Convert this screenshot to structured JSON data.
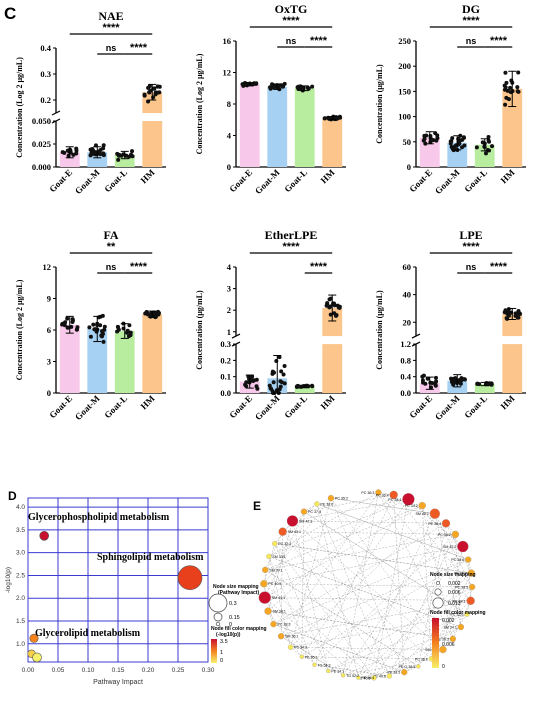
{
  "panel_letters": {
    "c": "C",
    "d": "D",
    "e": "E"
  },
  "colors": {
    "Goat-E": "#f7c8ea",
    "Goat-M": "#a6d1f2",
    "Goat-L": "#b8eda0",
    "HM": "#fbc58c",
    "dot": "#111111",
    "grid": "#3b3bd0",
    "node_hi": "#c8102e",
    "node_mid": "#f5821f",
    "node_lo": "#f6e85a"
  },
  "chart_data": [
    {
      "type": "bar",
      "id": "NAE",
      "title": "NAE",
      "ylabel": "Concentration (Log 2 μg/mL)",
      "categories": [
        "Goat-E",
        "Goat-M",
        "Goat-L",
        "HM"
      ],
      "values": [
        0.016,
        0.016,
        0.013,
        0.23
      ],
      "sd": [
        0.006,
        0.006,
        0.004,
        0.03
      ],
      "broken_axis": true,
      "low": {
        "range": [
          0,
          0.05
        ],
        "ticks": [
          "0.000",
          "0.025",
          "0.050"
        ]
      },
      "high": {
        "range": [
          0.15,
          0.4
        ],
        "ticks": [
          "0.2",
          "0.3",
          "0.4"
        ]
      },
      "sig": [
        {
          "from": 0,
          "to": 3,
          "label": "****"
        },
        {
          "from": 1,
          "to": 2,
          "label": "ns"
        },
        {
          "from": 2,
          "to": 3,
          "label": "****"
        }
      ]
    },
    {
      "type": "bar",
      "id": "OxTG",
      "title": "OxTG",
      "ylabel": "Concentration (Log 2 μg/mL)",
      "categories": [
        "Goat-E",
        "Goat-M",
        "Goat-L",
        "HM"
      ],
      "values": [
        10.5,
        10.2,
        10.0,
        6.2
      ],
      "sd": [
        0.2,
        0.35,
        0.3,
        0.2
      ],
      "ylim": [
        0,
        16
      ],
      "ticks": [
        "0",
        "4",
        "8",
        "12",
        "16"
      ],
      "sig": [
        {
          "from": 0,
          "to": 3,
          "label": "****"
        },
        {
          "from": 1,
          "to": 2,
          "label": "ns"
        },
        {
          "from": 2,
          "to": 3,
          "label": "****"
        }
      ]
    },
    {
      "type": "bar",
      "id": "DG",
      "title": "DG",
      "ylabel": "Concentration (μg/mL)",
      "categories": [
        "Goat-E",
        "Goat-M",
        "Goat-L",
        "HM"
      ],
      "values": [
        58,
        48,
        44,
        155
      ],
      "sd": [
        12,
        14,
        12,
        35
      ],
      "ylim": [
        0,
        250
      ],
      "ticks": [
        "0",
        "50",
        "100",
        "150",
        "200",
        "250"
      ],
      "sig": [
        {
          "from": 0,
          "to": 3,
          "label": "****"
        },
        {
          "from": 1,
          "to": 2,
          "label": "ns"
        },
        {
          "from": 2,
          "to": 3,
          "label": "****"
        }
      ]
    },
    {
      "type": "bar",
      "id": "FA",
      "title": "FA",
      "ylabel": "Concentration (Log 2 μg/mL)",
      "categories": [
        "Goat-E",
        "Goat-M",
        "Goat-L",
        "HM"
      ],
      "values": [
        6.5,
        6.1,
        5.9,
        7.5
      ],
      "sd": [
        0.8,
        1.2,
        0.7,
        0.3
      ],
      "ylim": [
        0,
        12
      ],
      "ticks": [
        "0",
        "3",
        "6",
        "9",
        "12"
      ],
      "sig": [
        {
          "from": 0,
          "to": 3,
          "label": "**"
        },
        {
          "from": 1,
          "to": 2,
          "label": "ns"
        },
        {
          "from": 2,
          "to": 3,
          "label": "****"
        }
      ]
    },
    {
      "type": "bar",
      "id": "EtherLPE",
      "title": "EtherLPE",
      "ylabel": "Concentration (μg/mL)",
      "categories": [
        "Goat-E",
        "Goat-M",
        "Goat-L",
        "HM"
      ],
      "values": [
        0.07,
        0.09,
        0.04,
        2.1
      ],
      "sd": [
        0.04,
        0.14,
        0.008,
        0.6
      ],
      "broken_axis": true,
      "low": {
        "range": [
          0,
          0.3
        ],
        "ticks": [
          "0.0",
          "0.1",
          "0.2",
          "0.3"
        ]
      },
      "high": {
        "range": [
          0.8,
          4
        ],
        "ticks": [
          "1",
          "2",
          "3",
          "4"
        ]
      },
      "sig": [
        {
          "from": 0,
          "to": 3,
          "label": "****"
        },
        {
          "from": 2,
          "to": 3,
          "label": "****"
        }
      ]
    },
    {
      "type": "bar",
      "id": "LPE",
      "title": "LPE",
      "ylabel": "Concentration (μg/mL)",
      "categories": [
        "Goat-E",
        "Goat-M",
        "Goat-L",
        "HM"
      ],
      "values": [
        0.24,
        0.3,
        0.22,
        26
      ],
      "sd": [
        0.15,
        0.15,
        0.04,
        4
      ],
      "broken_axis": true,
      "low": {
        "range": [
          0,
          1.2
        ],
        "ticks": [
          "0.0",
          "0.4",
          "0.8",
          "1.2"
        ]
      },
      "high": {
        "range": [
          10,
          60
        ],
        "ticks": [
          "20",
          "40",
          "60"
        ]
      },
      "sig": [
        {
          "from": 0,
          "to": 3,
          "label": "****"
        },
        {
          "from": 1,
          "to": 2,
          "label": "ns"
        },
        {
          "from": 2,
          "to": 3,
          "label": "****"
        }
      ]
    },
    {
      "type": "scatter",
      "id": "pathway",
      "xlabel": "Pathway Impact",
      "ylabel": "-log10(p)",
      "xlim": [
        0,
        0.3
      ],
      "ylim": [
        0.6,
        4.2
      ],
      "xticks": [
        "0.00",
        "0.05",
        "0.10",
        "0.15",
        "0.20",
        "0.25",
        "0.30"
      ],
      "yticks": [
        "1.0",
        "1.5",
        "2.0",
        "2.5",
        "3.0",
        "3.5",
        "4.0"
      ],
      "points": [
        {
          "x": 0.027,
          "y": 3.37,
          "size": 0.05,
          "color": 2.9,
          "label": "Glycerophospholipid metabolism"
        },
        {
          "x": 0.27,
          "y": 2.45,
          "size": 0.3,
          "color": 2.3,
          "label": "Sphingolipid metabolism"
        },
        {
          "x": 0.01,
          "y": 1.12,
          "size": 0.04,
          "color": 1.4,
          "label": "Glycerolipid metabolism"
        },
        {
          "x": 0.006,
          "y": 0.78,
          "size": 0.03,
          "color": 0.6,
          "label": ""
        },
        {
          "x": 0.015,
          "y": 0.7,
          "size": 0.05,
          "color": 0.3,
          "label": ""
        }
      ],
      "size_legend": {
        "title": "Node size mapping\n(Pathway Impact)",
        "values": [
          "0.3",
          "0.15",
          "0"
        ]
      },
      "color_legend": {
        "title": "Node fill color mapping\n(-log10(p))",
        "values": [
          "3.5",
          "1",
          "0"
        ]
      }
    }
  ],
  "network": {
    "size_legend": {
      "title": "Node size mapping",
      "values": [
        "0.002",
        "0.006",
        "0.013"
      ]
    },
    "color_legend": {
      "title": "Node fill color mapping",
      "values": [
        "0.002",
        "0.006",
        "0"
      ]
    },
    "nodes": [
      {
        "label": "PC 36:3",
        "v": 0.3
      },
      {
        "label": "PC 36:4",
        "v": 0.5
      },
      {
        "label": "PC 38:4",
        "v": 0.9
      },
      {
        "label": "PC 34:2",
        "v": 0.4
      },
      {
        "label": "SM 42:1",
        "v": 0.7
      },
      {
        "label": "PE 38:4",
        "v": 0.5
      },
      {
        "label": "PC 36:2",
        "v": 0.4
      },
      {
        "label": "SM 42:2",
        "v": 0.8
      },
      {
        "label": "PC 38:6",
        "v": 0.3
      },
      {
        "label": "PE 36:2",
        "v": 0.4
      },
      {
        "label": "PC 38:5",
        "v": 0.3
      },
      {
        "label": "PC 34:1",
        "v": 0.5
      },
      {
        "label": "PC 32:0",
        "v": 0.2
      },
      {
        "label": "SM 34:1",
        "v": 0.3
      },
      {
        "label": "PE 36:3",
        "v": 0.3
      },
      {
        "label": "SM 40:1",
        "v": 0.4
      },
      {
        "label": "PC 36:1",
        "v": 0.2
      },
      {
        "label": "PE O-38:5",
        "v": 0.1
      },
      {
        "label": "PE 38:5",
        "v": 0.3
      },
      {
        "label": "PE 40:6",
        "v": 0.2
      },
      {
        "label": "PC 40:6",
        "v": 0.2
      },
      {
        "label": "PE 36:4",
        "v": 0.1
      },
      {
        "label": "TG 52:2",
        "v": 0.1
      },
      {
        "label": "PE 34:1",
        "v": 0.1
      },
      {
        "label": "TG 54:3",
        "v": 0.1
      },
      {
        "label": "PE 36:1",
        "v": 0.1
      },
      {
        "label": "PC 34:3",
        "v": 0.2
      },
      {
        "label": "SM 36:1",
        "v": 0.3
      },
      {
        "label": "PC 38:3",
        "v": 0.3
      },
      {
        "label": "SM 38:1",
        "v": 0.4
      },
      {
        "label": "SM 41:1",
        "v": 0.9
      },
      {
        "label": "PC 40:5",
        "v": 0.4
      },
      {
        "label": "SM 39:1",
        "v": 0.3
      },
      {
        "label": "SM 33:1",
        "v": 0.2
      },
      {
        "label": "PC 32:1",
        "v": 0.2
      },
      {
        "label": "SM 43:1",
        "v": 0.5
      },
      {
        "label": "SM 42:3",
        "v": 0.8
      },
      {
        "label": "PC 37:4",
        "v": 0.3
      },
      {
        "label": "PE 38:6",
        "v": 0.2
      },
      {
        "label": "PC 35:2",
        "v": 0.3
      }
    ]
  }
}
